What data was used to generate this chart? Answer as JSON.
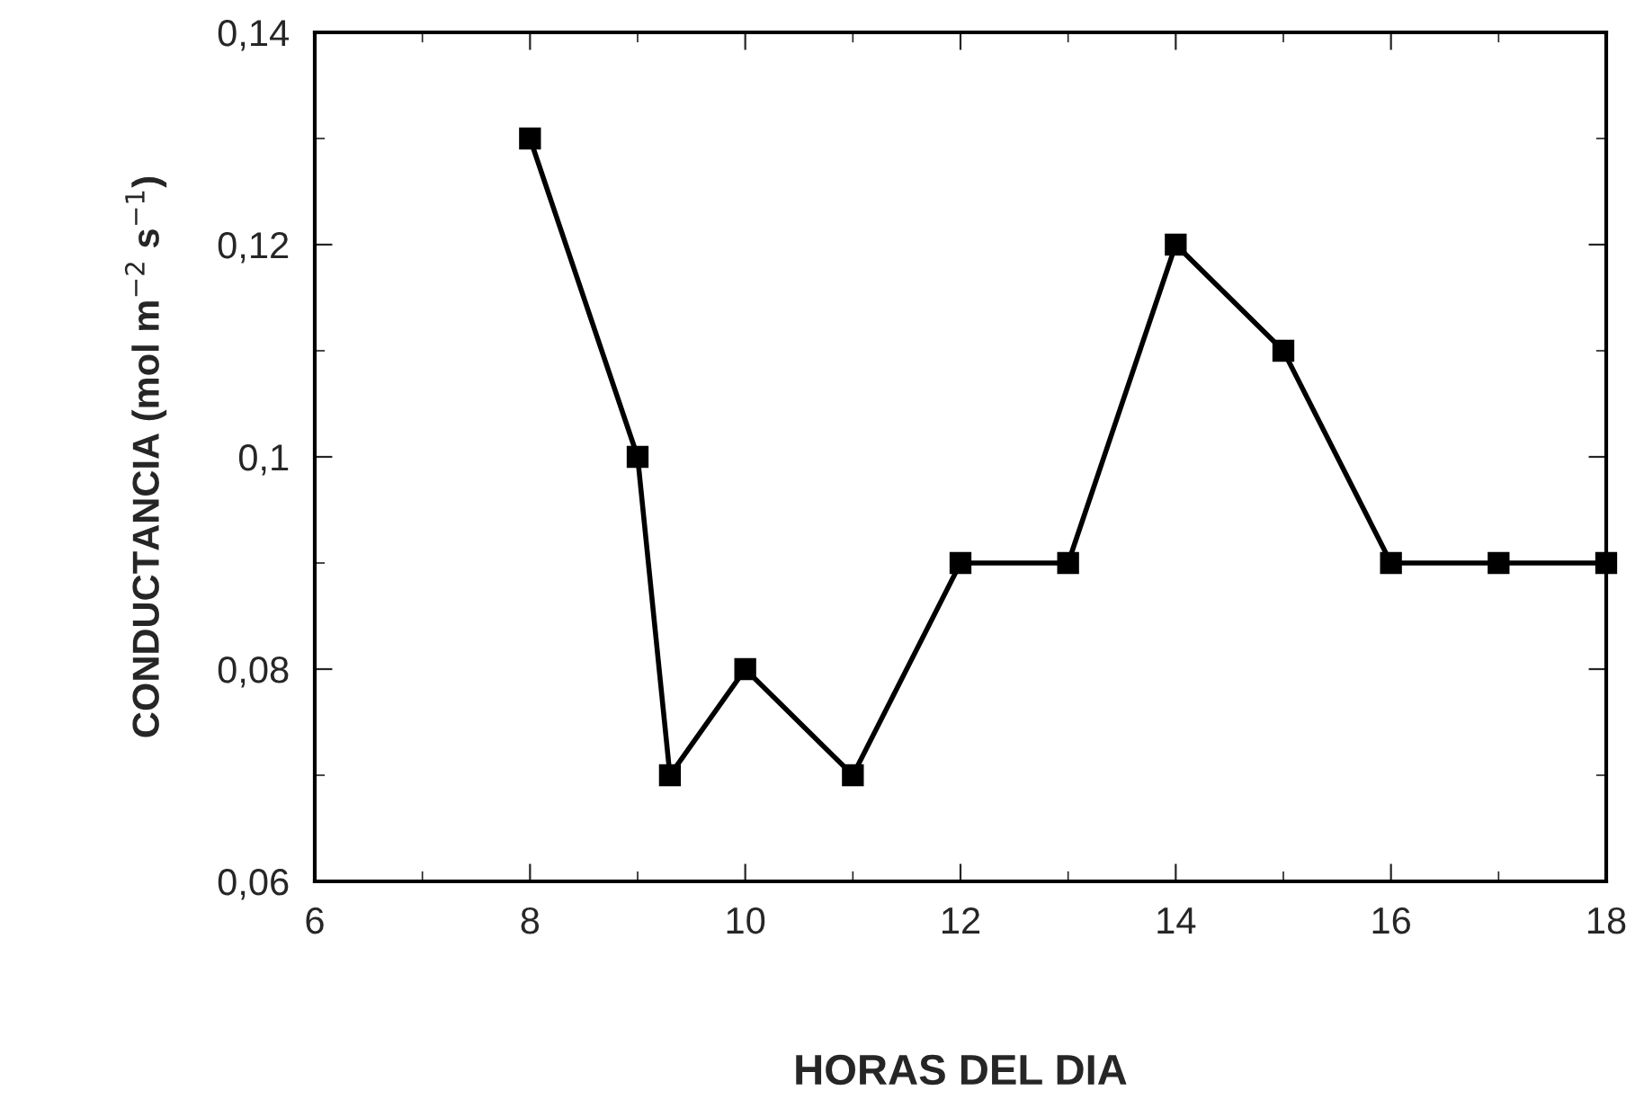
{
  "chart_data": {
    "type": "line",
    "xlabel": "HORAS DEL DIA",
    "ylabel": "CONDUCTANCIA (mol m$^{−2}$ s$^{−1}$)",
    "x": [
      8,
      9,
      9.3,
      10,
      11,
      12,
      13,
      14,
      15,
      16,
      17,
      18
    ],
    "series": [
      {
        "color": "#000000",
        "values": [
          0.13,
          0.1,
          0.07,
          0.08,
          0.07,
          0.09,
          0.09,
          0.12,
          0.11,
          0.09,
          0.09,
          0.09
        ]
      }
    ],
    "xlim": [
      6,
      18
    ],
    "xticks": [
      6,
      8,
      10,
      12,
      14,
      16,
      18
    ],
    "ylim": [
      0.06,
      0.14
    ],
    "yticks": [
      {
        "value": 0.06,
        "label": "0,06"
      },
      {
        "value": 0.08,
        "label": "0,08"
      },
      {
        "value": 0.1,
        "label": "0,1"
      },
      {
        "value": 0.12,
        "label": "0,12"
      },
      {
        "value": 0.14,
        "label": "0,14"
      }
    ],
    "marker": "square",
    "line_style": "solid",
    "grid": false
  }
}
